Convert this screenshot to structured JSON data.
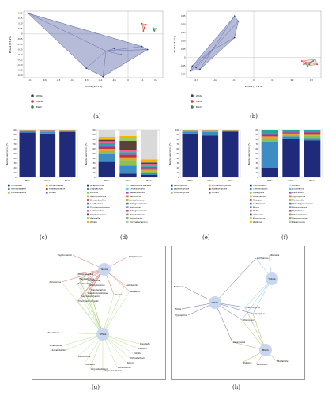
{
  "captions": [
    "(a)",
    "(b)",
    "(c)",
    "(d)",
    "(e)",
    "(f)",
    "(g)",
    "(h)"
  ],
  "groups": [
    {
      "name": "White",
      "color": "#2f3c8f"
    },
    {
      "name": "Yellow",
      "color": "#d63a2d"
    },
    {
      "name": "Black",
      "color": "#2f8a4a"
    }
  ],
  "bar_panels": [
    {
      "ylabel": "Relative abundance (%)",
      "yticks": [
        "100",
        "90",
        "80",
        "70",
        "60",
        "50",
        "40",
        "30",
        "20",
        "10",
        "0"
      ],
      "categories": [
        "White",
        "Yellow",
        "Black"
      ],
      "legend": [
        "Firmicutes",
        "Actinobacteria",
        "Proteobacteria",
        "Bacteroidetes",
        "Patescibacteria",
        "Others"
      ]
    },
    {
      "ylabel": "Relative abundance (%)",
      "yticks": [
        "100",
        "90",
        "80",
        "70",
        "60",
        "50",
        "40",
        "30",
        "20",
        "10",
        "0"
      ],
      "categories": [
        "White",
        "Yellow",
        "Black"
      ],
      "legend": [
        "Streptomyces",
        "Virgibacillus",
        "Bacillus",
        "Staphylococcus",
        "Oceanobacillus",
        "Lentibacillus",
        "Saccharopolyspora",
        "Lactobacillus",
        "Staphylococcus",
        "Weissella",
        "Others",
        "Pseudonocardiaceae",
        "Thioalkalivibrio",
        "Nesterenkonia",
        "Aerococcus",
        "Jeotgalicoccus",
        "Tetragenococcus",
        "Halomonas",
        "Tetragenococcus",
        "Brevibacterium",
        "Actinobacter",
        "Corynebacterium_1"
      ]
    },
    {
      "ylabel": "Relative abundance (%)",
      "yticks": [
        "100",
        "90",
        "80",
        "70",
        "60",
        "50",
        "40",
        "30",
        "20",
        "10",
        "0"
      ],
      "categories": [
        "White",
        "Yellow",
        "Black"
      ],
      "legend": [
        "Ascomycota",
        "Basidiomycota",
        "Mucoromycota",
        "Mortierellomycota",
        "Rozellomycota",
        "Others"
      ]
    },
    {
      "ylabel": "Relative abundance (%)",
      "yticks": [
        "100",
        "90",
        "80",
        "70",
        "60",
        "50",
        "40",
        "30",
        "20",
        "10",
        "0"
      ],
      "categories": [
        "White",
        "Yellow",
        "Black"
      ],
      "legend": [
        "Thermoascus",
        "Thermomyces",
        "Aspergillus",
        "Rasamsonia",
        "Rhizopus",
        "Lichtheimia",
        "Mucor",
        "Pichia",
        "Alternaria",
        "Rhizomucor",
        "Wallemia",
        "Others",
        "Lichtheimia",
        "Penicillium",
        "Hyphopichia",
        "Mortierella",
        "Pseudogymnoascus",
        "Byssochlamys",
        "Dipodascus",
        "Phaeosphaeria",
        "Debaryomyces",
        "Rasamsonia"
      ]
    }
  ],
  "chart_data": [
    {
      "type": "scatter",
      "xlabel": "PCoA1 [46.5%]",
      "ylabel": "PCoA2 [15.9%]",
      "xticks": [
        "-0.7",
        "-0.6",
        "-0.5",
        "-0.4",
        "-0.3",
        "-0.2",
        "-0.1",
        "0",
        "0.1",
        "0.2"
      ],
      "yticks": [
        "0.20",
        "0.15",
        "0.10",
        "0.05",
        "0",
        "-0.05",
        "-0.10",
        "-0.15",
        "-0.20",
        "-0.25",
        "-0.30",
        "-0.35",
        "-0.40"
      ],
      "xlim": [
        -0.75,
        0.25
      ],
      "ylim": [
        -0.42,
        0.22
      ],
      "series": [
        {
          "name": "White",
          "points": [
            [
              -0.72,
              0.2
            ],
            [
              -0.3,
              -0.33
            ],
            [
              -0.18,
              -0.41
            ],
            [
              0.1,
              -0.12
            ],
            [
              0.14,
              -0.15
            ],
            [
              -0.05,
              -0.2
            ],
            [
              -0.1,
              -0.14
            ]
          ]
        },
        {
          "name": "Yellow",
          "points": [
            [
              0.1,
              0.1
            ],
            [
              0.12,
              0.06
            ],
            [
              0.11,
              0.03
            ],
            [
              0.13,
              0.09
            ],
            [
              0.115,
              0.05
            ]
          ]
        },
        {
          "name": "Black",
          "points": [
            [
              0.18,
              0.06
            ],
            [
              0.19,
              0.03
            ],
            [
              0.2,
              0.05
            ],
            [
              0.185,
              0.04
            ]
          ]
        }
      ]
    },
    {
      "type": "scatter",
      "xlabel": "PCoA1 [77.9%]",
      "ylabel": "PCoA2 [8.6%]",
      "xticks": [
        "-0.3",
        "-0.2",
        "-0.1",
        "0",
        "0.1",
        "0.2",
        "0.3"
      ],
      "yticks": [
        "0.25",
        "0.20",
        "0.15",
        "0.10",
        "0.05",
        "0",
        "-0.05",
        "-0.10"
      ],
      "xlim": [
        -0.35,
        0.35
      ],
      "ylim": [
        -0.12,
        0.28
      ],
      "series": [
        {
          "name": "White",
          "points": [
            [
              -0.33,
              -0.08
            ],
            [
              -0.32,
              -0.05
            ],
            [
              -0.1,
              0.25
            ],
            [
              -0.08,
              0.22
            ],
            [
              -0.1,
              0.12
            ],
            [
              -0.3,
              -0.06
            ],
            [
              -0.28,
              -0.07
            ]
          ]
        },
        {
          "name": "Yellow",
          "points": [
            [
              0.25,
              -0.02
            ],
            [
              0.3,
              -0.03
            ],
            [
              0.32,
              -0.01
            ],
            [
              0.28,
              -0.05
            ],
            [
              0.33,
              -0.04
            ],
            [
              0.27,
              -0.03
            ]
          ]
        },
        {
          "name": "Black",
          "points": [
            [
              0.26,
              -0.04
            ],
            [
              0.29,
              -0.04
            ],
            [
              0.31,
              -0.02
            ]
          ]
        }
      ]
    },
    {
      "type": "bar",
      "stacked": true,
      "categories": [
        "White",
        "Yellow",
        "Black"
      ],
      "series": [
        {
          "name": "Firmicutes",
          "values": [
            94,
            92,
            95
          ]
        },
        {
          "name": "Actinobacteria",
          "values": [
            3,
            4,
            2
          ]
        },
        {
          "name": "Proteobacteria",
          "values": [
            2,
            2,
            2
          ]
        },
        {
          "name": "Bacteroidetes",
          "values": [
            0.5,
            1,
            0.5
          ]
        },
        {
          "name": "Patescibacteria",
          "values": [
            0.3,
            0.5,
            0.3
          ]
        },
        {
          "name": "Others",
          "values": [
            0.2,
            0.5,
            0.2
          ]
        }
      ]
    },
    {
      "type": "bar",
      "stacked": true,
      "categories": [
        "White",
        "Yellow",
        "Black"
      ],
      "series": [
        {
          "name": "Streptomyces",
          "values": [
            34,
            8,
            5
          ]
        },
        {
          "name": "Virgibacillus",
          "values": [
            15,
            18,
            4
          ]
        },
        {
          "name": "Bacillus",
          "values": [
            6,
            10,
            4
          ]
        },
        {
          "name": "Staphylococcus",
          "values": [
            5,
            6,
            3
          ]
        },
        {
          "name": "Oceanobacillus",
          "values": [
            4,
            5,
            3
          ]
        },
        {
          "name": "Lentibacillus",
          "values": [
            4,
            3,
            3
          ]
        },
        {
          "name": "Saccharopolyspora",
          "values": [
            4,
            3,
            3
          ]
        },
        {
          "name": "Lactobacillus",
          "values": [
            4,
            4,
            3
          ]
        },
        {
          "name": "Tetragenococcus",
          "values": [
            3,
            20,
            3
          ]
        },
        {
          "name": "Weissella",
          "values": [
            3,
            8,
            4
          ]
        },
        {
          "name": "Halomonas",
          "values": [
            3,
            2,
            3
          ]
        },
        {
          "name": "Others",
          "values": [
            15,
            13,
            62
          ]
        }
      ]
    },
    {
      "type": "bar",
      "stacked": true,
      "categories": [
        "White",
        "Yellow",
        "Black"
      ],
      "series": [
        {
          "name": "Ascomycota",
          "values": [
            92,
            88,
            96
          ]
        },
        {
          "name": "Basidiomycota",
          "values": [
            4,
            7,
            2
          ]
        },
        {
          "name": "Mucoromycota",
          "values": [
            3,
            4,
            1
          ]
        },
        {
          "name": "Mortierellomycota",
          "values": [
            0.5,
            0.5,
            0.5
          ]
        },
        {
          "name": "Rozellomycota",
          "values": [
            0.3,
            0.3,
            0.3
          ]
        },
        {
          "name": "Others",
          "values": [
            0.2,
            0.2,
            0.2
          ]
        }
      ]
    },
    {
      "type": "bar",
      "stacked": true,
      "categories": [
        "White",
        "Yellow",
        "Black"
      ],
      "series": [
        {
          "name": "Thermoascus",
          "values": [
            20,
            80,
            78
          ]
        },
        {
          "name": "Thermomyces",
          "values": [
            55,
            6,
            5
          ]
        },
        {
          "name": "Aspergillus",
          "values": [
            6,
            3,
            5
          ]
        },
        {
          "name": "Rasamsonia",
          "values": [
            5,
            3,
            3
          ]
        },
        {
          "name": "Rhizopus",
          "values": [
            4,
            2,
            3
          ]
        },
        {
          "name": "Mucor",
          "values": [
            3,
            2,
            2
          ]
        },
        {
          "name": "Others",
          "values": [
            7,
            4,
            4
          ]
        }
      ]
    }
  ],
  "networks": [
    {
      "hubs": [
        {
          "label": "Yellow"
        },
        {
          "label": "White"
        }
      ],
      "labels": [
        "Psychrobacter",
        "Streptomyces",
        "Aerococcus",
        "Oceanobacillus",
        "Nesterenkonia",
        "Lentibacillus",
        "Virgibacillus",
        "Staphylococcus",
        "Brevibacterium",
        "Lactobacillus",
        "Weissella",
        "Pseudonocardiaceae",
        "Saccharopolyspora",
        "Thermoactinomyces",
        "Bacillus",
        "Providencia",
        "Enterobacter",
        "Acinetobacter",
        "Lactococcus",
        "Collinsella",
        "Corynebacterium",
        "Chryseobacterium",
        "Rhodococcus",
        "Kocuria",
        "Ochrobactrum",
        "Cobetia",
        "C1-B045",
        "Prevotella"
      ]
    },
    {
      "hubs": [
        {
          "label": "White"
        },
        {
          "label": "Yellow"
        },
        {
          "label": "Black"
        }
      ],
      "labels": [
        "Lichtheimia",
        "Alternaria",
        "Rhizopus",
        "Pichia",
        "Hyphopichia",
        "Aspergillus",
        "Thermomyces",
        "Rhizomucor",
        "Rasamsonia",
        "Wallemia",
        "Penicillium",
        "Mortierella"
      ]
    }
  ]
}
